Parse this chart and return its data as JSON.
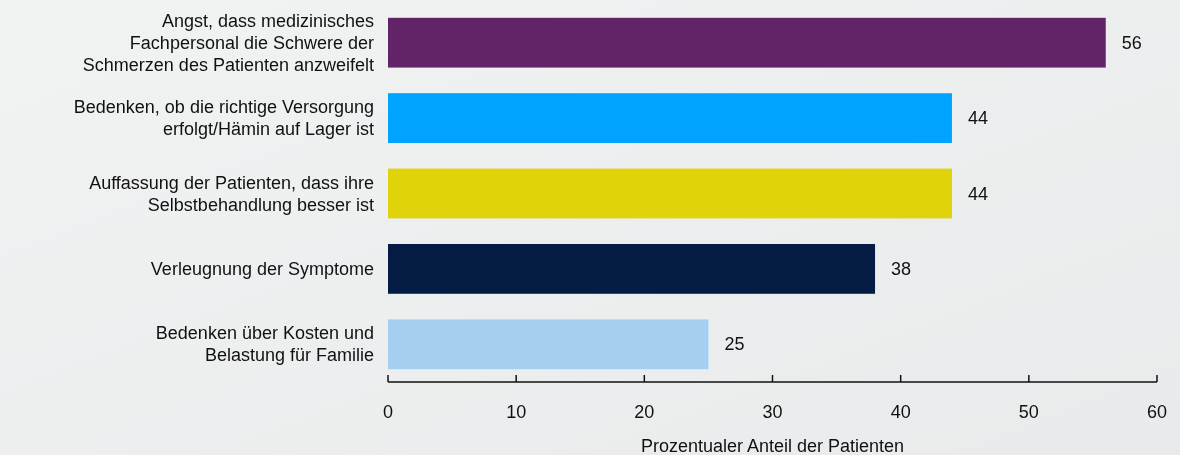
{
  "chart_data": {
    "type": "bar",
    "orientation": "horizontal",
    "xlabel": "Prozentualer Anteil der Patienten",
    "categories": [
      "Angst, dass medizinisches\nFachpersonal die Schwere der\nSchmerzen des Patienten anzweifelt",
      "Bedenken, ob die richtige Versorgung\nerfolgt/Hämin auf Lager ist",
      "Auffassung der Patienten, dass ihre\nSelbstbehandlung besser ist",
      "Verleugnung der Symptome",
      "Bedenken über Kosten und\nBelastung für Familie"
    ],
    "values": [
      56,
      44,
      44,
      38,
      25
    ],
    "colors": [
      "#632369",
      "#00a3ff",
      "#e0d30a",
      "#041c44",
      "#a5cff0"
    ],
    "xlim": [
      0,
      60
    ],
    "xticks": [
      0,
      10,
      20,
      30,
      40,
      50,
      60
    ],
    "data_labels": true,
    "grid": false
  }
}
